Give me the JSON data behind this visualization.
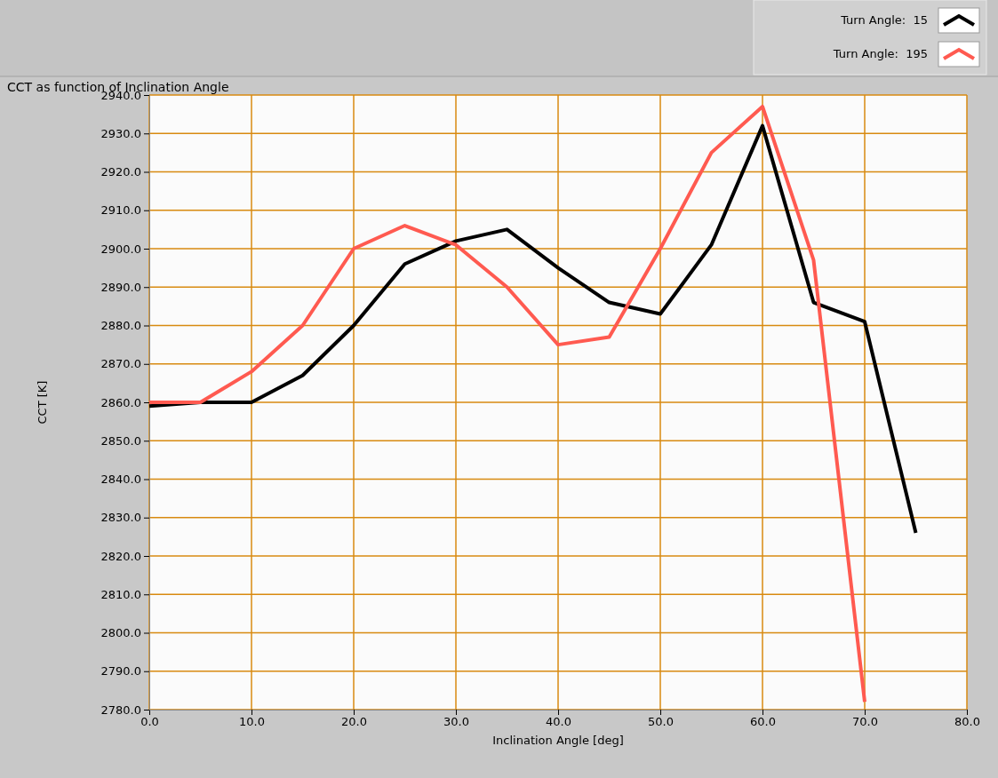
{
  "chart_data": {
    "type": "line",
    "title": "CCT as function of Inclination Angle",
    "xlabel": "Inclination Angle [deg]",
    "ylabel": "CCT [K]",
    "x": [
      0,
      5,
      10,
      15,
      20,
      25,
      30,
      35,
      40,
      45,
      50,
      55,
      60,
      65,
      70,
      75
    ],
    "series": [
      {
        "name": "Turn Angle:  15",
        "color": "#000000",
        "values": [
          2859,
          2860,
          2860,
          2867,
          2880,
          2896,
          2902,
          2905,
          2895,
          2886,
          2883,
          2901,
          2932,
          2886,
          2881,
          2826
        ]
      },
      {
        "name": "Turn Angle:  195",
        "color": "#ff5a50",
        "values": [
          2860,
          2860,
          2868,
          2880,
          2900,
          2906,
          2901,
          2890,
          2875,
          2877,
          2900,
          2925,
          2937,
          2897,
          2782,
          null
        ]
      }
    ],
    "xlim": [
      0,
      80
    ],
    "xticks": [
      {
        "value": 0,
        "label": "0.0"
      },
      {
        "value": 10,
        "label": "10.0"
      },
      {
        "value": 20,
        "label": "20.0"
      },
      {
        "value": 30,
        "label": "30.0"
      },
      {
        "value": 40,
        "label": "40.0"
      },
      {
        "value": 50,
        "label": "50.0"
      },
      {
        "value": 60,
        "label": "60.0"
      },
      {
        "value": 70,
        "label": "70.0"
      },
      {
        "value": 80,
        "label": "80.0"
      }
    ],
    "ylim": [
      2780,
      2940
    ],
    "yticks": [
      {
        "value": 2780,
        "label": "2780.0"
      },
      {
        "value": 2790,
        "label": "2790.0"
      },
      {
        "value": 2800,
        "label": "2800.0"
      },
      {
        "value": 2810,
        "label": "2810.0"
      },
      {
        "value": 2820,
        "label": "2820.0"
      },
      {
        "value": 2830,
        "label": "2830.0"
      },
      {
        "value": 2840,
        "label": "2840.0"
      },
      {
        "value": 2850,
        "label": "2850.0"
      },
      {
        "value": 2860,
        "label": "2860.0"
      },
      {
        "value": 2870,
        "label": "2870.0"
      },
      {
        "value": 2880,
        "label": "2880.0"
      },
      {
        "value": 2890,
        "label": "2890.0"
      },
      {
        "value": 2900,
        "label": "2900.0"
      },
      {
        "value": 2910,
        "label": "2910.0"
      },
      {
        "value": 2920,
        "label": "2920.0"
      },
      {
        "value": 2930,
        "label": "2930.0"
      },
      {
        "value": 2940,
        "label": "2940.0"
      }
    ],
    "grid": true,
    "legend": "top right",
    "marker": "none",
    "line_style": "solid"
  }
}
